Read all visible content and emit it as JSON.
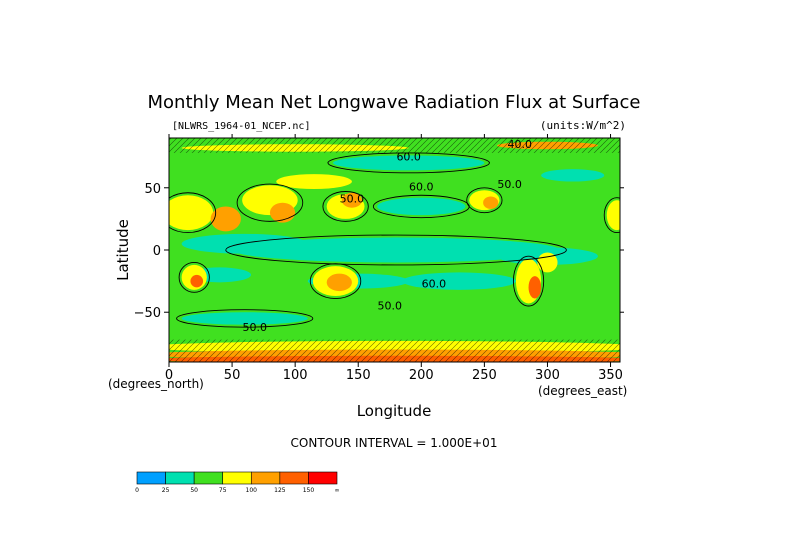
{
  "chart_data": {
    "type": "heatmap",
    "title": "Monthly Mean Net Longwave Radiation Flux at Surface",
    "file_label": "[NLWRS_1964-01_NCEP.nc]",
    "units_label": "(units:W/m^2)",
    "xlabel": "Longitude",
    "ylabel": "Latitude",
    "x_unit_label": "(degrees_east)",
    "y_unit_label": "(degrees_north)",
    "xlim": [
      0,
      357.5
    ],
    "ylim": [
      -90,
      90
    ],
    "x_ticks": [
      0,
      50,
      100,
      150,
      200,
      250,
      300,
      350
    ],
    "y_ticks": [
      50,
      0,
      -50
    ],
    "y_tick_labels": [
      "50",
      "0",
      "−50"
    ],
    "contour_interval_text": "CONTOUR INTERVAL = 1.000E+01",
    "contour_labels": [
      {
        "text": "40.0",
        "lon": 278,
        "lat": 82
      },
      {
        "text": "60.0",
        "lon": 190,
        "lat": 72
      },
      {
        "text": "60.0",
        "lon": 200,
        "lat": 48
      },
      {
        "text": "50.0",
        "lon": 145,
        "lat": 38
      },
      {
        "text": "50.0",
        "lon": 270,
        "lat": 50
      },
      {
        "text": "60.0",
        "lon": 210,
        "lat": -30
      },
      {
        "text": "50.0",
        "lon": 175,
        "lat": -48
      },
      {
        "text": "50.0",
        "lon": 68,
        "lat": -65
      }
    ],
    "colorbar": {
      "levels": [
        "0",
        "25",
        "50",
        "75",
        "100",
        "125",
        "150",
        "∞"
      ],
      "colors": [
        "#00a0ff",
        "#00e0b0",
        "#40e020",
        "#ffff00",
        "#ffa000",
        "#ff6000",
        "#ff0000"
      ]
    }
  }
}
